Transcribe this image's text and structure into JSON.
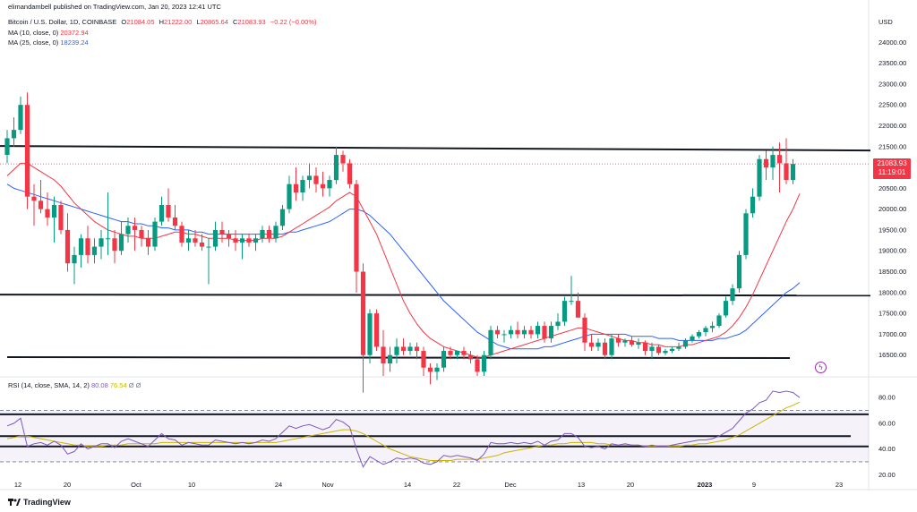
{
  "header": {
    "publisher": "elimandambell published on TradingView.com, Jan 20, 2023 12:41 UTC",
    "symbol": "Bitcoin / U.S. Dollar, 1D, COINBASE",
    "o_label": "O",
    "o_value": "21084.05",
    "h_label": "H",
    "h_value": "21222.00",
    "l_label": "L",
    "l_value": "20865.64",
    "c_label": "C",
    "c_value": "21083.93",
    "change": "−0.22 (−0.00%)",
    "ma10_label": "MA (10, close, 0)",
    "ma10_value": "20372.94",
    "ma25_label": "MA (25, close, 0)",
    "ma25_value": "18239.24",
    "rsi_label": "RSI (14, close, SMA, 14, 2)",
    "rsi_value": "80.08",
    "rsi_ma_value": "76.54",
    "rsi_extra1": "Ø",
    "rsi_extra2": "Ø"
  },
  "price_tag": {
    "price": "21083.93",
    "countdown": "11:19:01"
  },
  "brand": "TradingView",
  "colors": {
    "up": "#089981",
    "down": "#f23645",
    "ma10": "#f23645",
    "ma25": "#2962ff",
    "rsi": "#7e57c2",
    "rsi_ma": "#c9b500",
    "level_line": "#131722"
  },
  "chart_data": {
    "type": "candlestick",
    "currency_label": "USD",
    "price_axis": {
      "min": 16000,
      "max": 24500,
      "ticks": [
        "24000.00",
        "23500.00",
        "23000.00",
        "22500.00",
        "22000.00",
        "21500.00",
        "21000.00",
        "20500.00",
        "20000.00",
        "19500.00",
        "19000.00",
        "18500.00",
        "18000.00",
        "17500.00",
        "17000.00",
        "16500.00"
      ]
    },
    "rsi_axis": {
      "ticks": [
        "80.00",
        "60.00",
        "40.00",
        "20.00"
      ],
      "band": [
        30,
        70
      ]
    },
    "time_ticks": [
      "12",
      "20",
      "Oct",
      "10",
      "24",
      "Nov",
      "14",
      "22",
      "Dec",
      "13",
      "20",
      "2023",
      "9",
      "23"
    ],
    "candles": [
      {
        "o": 21300,
        "h": 21900,
        "l": 21100,
        "c": 21700
      },
      {
        "o": 21700,
        "h": 22200,
        "l": 21500,
        "c": 21900
      },
      {
        "o": 21900,
        "h": 22700,
        "l": 21800,
        "c": 22500
      },
      {
        "o": 22500,
        "h": 22800,
        "l": 20000,
        "c": 20300
      },
      {
        "o": 20300,
        "h": 20600,
        "l": 19600,
        "c": 20200
      },
      {
        "o": 20200,
        "h": 20700,
        "l": 19900,
        "c": 20000
      },
      {
        "o": 20000,
        "h": 20400,
        "l": 19600,
        "c": 19800
      },
      {
        "o": 19800,
        "h": 20300,
        "l": 19200,
        "c": 20100
      },
      {
        "o": 20100,
        "h": 20200,
        "l": 19400,
        "c": 19500
      },
      {
        "o": 19500,
        "h": 19900,
        "l": 18500,
        "c": 18700
      },
      {
        "o": 18700,
        "h": 19100,
        "l": 18200,
        "c": 18900
      },
      {
        "o": 18900,
        "h": 19400,
        "l": 18600,
        "c": 19300
      },
      {
        "o": 19300,
        "h": 19600,
        "l": 18700,
        "c": 18900
      },
      {
        "o": 18900,
        "h": 19300,
        "l": 18700,
        "c": 19100
      },
      {
        "o": 19100,
        "h": 19500,
        "l": 18800,
        "c": 19300
      },
      {
        "o": 19300,
        "h": 20400,
        "l": 18900,
        "c": 19300
      },
      {
        "o": 19300,
        "h": 19500,
        "l": 18700,
        "c": 19000
      },
      {
        "o": 19000,
        "h": 19700,
        "l": 18900,
        "c": 19400
      },
      {
        "o": 19400,
        "h": 19800,
        "l": 19200,
        "c": 19600
      },
      {
        "o": 19600,
        "h": 19800,
        "l": 19000,
        "c": 19500
      },
      {
        "o": 19500,
        "h": 19600,
        "l": 19100,
        "c": 19300
      },
      {
        "o": 19300,
        "h": 19500,
        "l": 18900,
        "c": 19100
      },
      {
        "o": 19100,
        "h": 19800,
        "l": 19000,
        "c": 19700
      },
      {
        "o": 19700,
        "h": 20300,
        "l": 19600,
        "c": 20100
      },
      {
        "o": 20100,
        "h": 20500,
        "l": 19700,
        "c": 19800
      },
      {
        "o": 19800,
        "h": 20100,
        "l": 19500,
        "c": 19600
      },
      {
        "o": 19600,
        "h": 19700,
        "l": 19100,
        "c": 19200
      },
      {
        "o": 19200,
        "h": 19500,
        "l": 19000,
        "c": 19300
      },
      {
        "o": 19300,
        "h": 19500,
        "l": 19100,
        "c": 19200
      },
      {
        "o": 19200,
        "h": 19400,
        "l": 19000,
        "c": 19100
      },
      {
        "o": 19100,
        "h": 19300,
        "l": 18200,
        "c": 19100
      },
      {
        "o": 19100,
        "h": 19700,
        "l": 19000,
        "c": 19500
      },
      {
        "o": 19500,
        "h": 19700,
        "l": 19200,
        "c": 19400
      },
      {
        "o": 19400,
        "h": 19500,
        "l": 19100,
        "c": 19300
      },
      {
        "o": 19300,
        "h": 19500,
        "l": 19000,
        "c": 19200
      },
      {
        "o": 19200,
        "h": 19400,
        "l": 18800,
        "c": 19300
      },
      {
        "o": 19300,
        "h": 19400,
        "l": 19100,
        "c": 19200
      },
      {
        "o": 19200,
        "h": 19400,
        "l": 19000,
        "c": 19300
      },
      {
        "o": 19300,
        "h": 19600,
        "l": 19200,
        "c": 19500
      },
      {
        "o": 19500,
        "h": 19600,
        "l": 19200,
        "c": 19300
      },
      {
        "o": 19300,
        "h": 19700,
        "l": 19200,
        "c": 19600
      },
      {
        "o": 19600,
        "h": 20100,
        "l": 19500,
        "c": 20000
      },
      {
        "o": 20000,
        "h": 20800,
        "l": 19900,
        "c": 20600
      },
      {
        "o": 20600,
        "h": 21000,
        "l": 20200,
        "c": 20400
      },
      {
        "o": 20400,
        "h": 20800,
        "l": 20200,
        "c": 20700
      },
      {
        "o": 20700,
        "h": 21100,
        "l": 20500,
        "c": 20800
      },
      {
        "o": 20800,
        "h": 21000,
        "l": 20400,
        "c": 20600
      },
      {
        "o": 20600,
        "h": 20900,
        "l": 20300,
        "c": 20500
      },
      {
        "o": 20500,
        "h": 20800,
        "l": 20300,
        "c": 20700
      },
      {
        "o": 20700,
        "h": 21500,
        "l": 20600,
        "c": 21300
      },
      {
        "o": 21300,
        "h": 21400,
        "l": 20900,
        "c": 21100
      },
      {
        "o": 21100,
        "h": 21200,
        "l": 20500,
        "c": 20600
      },
      {
        "o": 20600,
        "h": 20700,
        "l": 18000,
        "c": 18500
      },
      {
        "o": 18500,
        "h": 18700,
        "l": 15600,
        "c": 16500
      },
      {
        "o": 16500,
        "h": 17600,
        "l": 16300,
        "c": 17500
      },
      {
        "o": 17500,
        "h": 17600,
        "l": 16600,
        "c": 16700
      },
      {
        "o": 16700,
        "h": 17100,
        "l": 16000,
        "c": 16300
      },
      {
        "o": 16300,
        "h": 16700,
        "l": 16100,
        "c": 16500
      },
      {
        "o": 16500,
        "h": 16900,
        "l": 16300,
        "c": 16700
      },
      {
        "o": 16700,
        "h": 16900,
        "l": 16500,
        "c": 16600
      },
      {
        "o": 16600,
        "h": 16800,
        "l": 16500,
        "c": 16700
      },
      {
        "o": 16700,
        "h": 16800,
        "l": 16400,
        "c": 16600
      },
      {
        "o": 16600,
        "h": 16700,
        "l": 16000,
        "c": 16200
      },
      {
        "o": 16200,
        "h": 16300,
        "l": 15800,
        "c": 16100
      },
      {
        "o": 16100,
        "h": 16300,
        "l": 15900,
        "c": 16200
      },
      {
        "o": 16200,
        "h": 16700,
        "l": 16100,
        "c": 16600
      },
      {
        "o": 16600,
        "h": 16700,
        "l": 16400,
        "c": 16500
      },
      {
        "o": 16500,
        "h": 16600,
        "l": 16400,
        "c": 16600
      },
      {
        "o": 16600,
        "h": 16700,
        "l": 16400,
        "c": 16500
      },
      {
        "o": 16500,
        "h": 16600,
        "l": 16300,
        "c": 16400
      },
      {
        "o": 16400,
        "h": 16500,
        "l": 16000,
        "c": 16100
      },
      {
        "o": 16100,
        "h": 16600,
        "l": 16000,
        "c": 16500
      },
      {
        "o": 16500,
        "h": 17200,
        "l": 16400,
        "c": 17100
      },
      {
        "o": 17100,
        "h": 17200,
        "l": 16900,
        "c": 17000
      },
      {
        "o": 17000,
        "h": 17100,
        "l": 16800,
        "c": 17000
      },
      {
        "o": 17000,
        "h": 17200,
        "l": 16900,
        "c": 17100
      },
      {
        "o": 17100,
        "h": 17300,
        "l": 16900,
        "c": 17000
      },
      {
        "o": 17000,
        "h": 17200,
        "l": 16900,
        "c": 17100
      },
      {
        "o": 17100,
        "h": 17200,
        "l": 16900,
        "c": 17000
      },
      {
        "o": 17000,
        "h": 17300,
        "l": 16900,
        "c": 17200
      },
      {
        "o": 17200,
        "h": 17300,
        "l": 16800,
        "c": 16900
      },
      {
        "o": 16900,
        "h": 17300,
        "l": 16800,
        "c": 17200
      },
      {
        "o": 17200,
        "h": 17500,
        "l": 17100,
        "c": 17300
      },
      {
        "o": 17300,
        "h": 17900,
        "l": 17200,
        "c": 17800
      },
      {
        "o": 17800,
        "h": 18400,
        "l": 17700,
        "c": 17800
      },
      {
        "o": 17800,
        "h": 18000,
        "l": 17400,
        "c": 17400
      },
      {
        "o": 17400,
        "h": 17500,
        "l": 16600,
        "c": 16800
      },
      {
        "o": 16800,
        "h": 17000,
        "l": 16600,
        "c": 16700
      },
      {
        "o": 16700,
        "h": 16900,
        "l": 16600,
        "c": 16800
      },
      {
        "o": 16800,
        "h": 16900,
        "l": 16400,
        "c": 16500
      },
      {
        "o": 16500,
        "h": 17000,
        "l": 16400,
        "c": 16900
      },
      {
        "o": 16900,
        "h": 17000,
        "l": 16700,
        "c": 16800
      },
      {
        "o": 16800,
        "h": 16900,
        "l": 16700,
        "c": 16850
      },
      {
        "o": 16850,
        "h": 16950,
        "l": 16700,
        "c": 16750
      },
      {
        "o": 16750,
        "h": 16900,
        "l": 16650,
        "c": 16800
      },
      {
        "o": 16800,
        "h": 16850,
        "l": 16500,
        "c": 16600
      },
      {
        "o": 16600,
        "h": 16800,
        "l": 16400,
        "c": 16700
      },
      {
        "o": 16700,
        "h": 16750,
        "l": 16500,
        "c": 16550
      },
      {
        "o": 16550,
        "h": 16650,
        "l": 16500,
        "c": 16600
      },
      {
        "o": 16600,
        "h": 16700,
        "l": 16550,
        "c": 16650
      },
      {
        "o": 16650,
        "h": 16800,
        "l": 16600,
        "c": 16700
      },
      {
        "o": 16700,
        "h": 16900,
        "l": 16650,
        "c": 16850
      },
      {
        "o": 16850,
        "h": 17000,
        "l": 16800,
        "c": 16950
      },
      {
        "o": 16950,
        "h": 17100,
        "l": 16900,
        "c": 17050
      },
      {
        "o": 17050,
        "h": 17200,
        "l": 16950,
        "c": 17150
      },
      {
        "o": 17150,
        "h": 17300,
        "l": 17050,
        "c": 17200
      },
      {
        "o": 17200,
        "h": 17500,
        "l": 17150,
        "c": 17450
      },
      {
        "o": 17450,
        "h": 17900,
        "l": 17400,
        "c": 17800
      },
      {
        "o": 17800,
        "h": 18200,
        "l": 17700,
        "c": 18100
      },
      {
        "o": 18100,
        "h": 19000,
        "l": 18000,
        "c": 18900
      },
      {
        "o": 18900,
        "h": 20000,
        "l": 18800,
        "c": 19900
      },
      {
        "o": 19900,
        "h": 20500,
        "l": 19800,
        "c": 20300
      },
      {
        "o": 20300,
        "h": 21300,
        "l": 20200,
        "c": 21200
      },
      {
        "o": 21200,
        "h": 21400,
        "l": 20700,
        "c": 21000
      },
      {
        "o": 21000,
        "h": 21500,
        "l": 20700,
        "c": 21300
      },
      {
        "o": 21300,
        "h": 21600,
        "l": 20400,
        "c": 21100
      },
      {
        "o": 21100,
        "h": 21700,
        "l": 20600,
        "c": 20700
      },
      {
        "o": 20700,
        "h": 21200,
        "l": 20600,
        "c": 21084
      }
    ],
    "ma10": [
      20800,
      20950,
      21100,
      21100,
      21000,
      20900,
      20800,
      20700,
      20550,
      20350,
      20150,
      20000,
      19850,
      19700,
      19600,
      19500,
      19450,
      19400,
      19350,
      19350,
      19300,
      19300,
      19300,
      19350,
      19400,
      19450,
      19450,
      19400,
      19400,
      19350,
      19300,
      19300,
      19300,
      19300,
      19250,
      19250,
      19250,
      19250,
      19300,
      19300,
      19300,
      19350,
      19450,
      19550,
      19650,
      19750,
      19850,
      19950,
      20050,
      20200,
      20300,
      20400,
      20300,
      20000,
      19700,
      19400,
      19000,
      18600,
      18200,
      17800,
      17500,
      17250,
      17050,
      16900,
      16800,
      16700,
      16650,
      16600,
      16550,
      16500,
      16450,
      16450,
      16500,
      16550,
      16600,
      16650,
      16700,
      16750,
      16800,
      16850,
      16900,
      16950,
      17000,
      17050,
      17100,
      17150,
      17150,
      17100,
      17050,
      17000,
      16950,
      16900,
      16850,
      16850,
      16800,
      16800,
      16750,
      16750,
      16700,
      16700,
      16700,
      16750,
      16750,
      16800,
      16850,
      16900,
      16950,
      17050,
      17200,
      17400,
      17650,
      17950,
      18300,
      18650,
      19000,
      19350,
      19700,
      20000,
      20372
    ],
    "ma25": [
      20600,
      20500,
      20450,
      20400,
      20350,
      20300,
      20250,
      20200,
      20150,
      20100,
      20050,
      20000,
      19950,
      19900,
      19850,
      19800,
      19750,
      19700,
      19700,
      19650,
      19650,
      19600,
      19600,
      19550,
      19550,
      19500,
      19500,
      19500,
      19450,
      19450,
      19400,
      19400,
      19400,
      19400,
      19400,
      19400,
      19400,
      19400,
      19400,
      19400,
      19400,
      19400,
      19450,
      19450,
      19500,
      19550,
      19600,
      19650,
      19700,
      19800,
      19900,
      20000,
      20000,
      19950,
      19850,
      19700,
      19550,
      19400,
      19200,
      19000,
      18800,
      18600,
      18400,
      18200,
      18000,
      17800,
      17650,
      17500,
      17350,
      17200,
      17050,
      16950,
      16850,
      16750,
      16700,
      16650,
      16650,
      16650,
      16650,
      16650,
      16700,
      16700,
      16750,
      16800,
      16850,
      16900,
      16950,
      17000,
      17000,
      17000,
      17000,
      17000,
      17000,
      16950,
      16950,
      16950,
      16950,
      16900,
      16900,
      16900,
      16850,
      16850,
      16850,
      16850,
      16850,
      16850,
      16900,
      16900,
      16950,
      17000,
      17100,
      17250,
      17400,
      17550,
      17700,
      17850,
      18000,
      18100,
      18239
    ],
    "rsi": [
      58,
      60,
      64,
      42,
      44,
      45,
      43,
      46,
      43,
      36,
      38,
      44,
      40,
      42,
      44,
      44,
      41,
      46,
      48,
      46,
      44,
      42,
      47,
      52,
      48,
      47,
      43,
      45,
      44,
      43,
      43,
      47,
      46,
      45,
      44,
      45,
      44,
      45,
      47,
      46,
      48,
      53,
      58,
      56,
      58,
      59,
      57,
      55,
      57,
      63,
      61,
      57,
      40,
      26,
      34,
      31,
      28,
      30,
      33,
      32,
      33,
      32,
      29,
      28,
      30,
      35,
      34,
      35,
      34,
      33,
      31,
      36,
      45,
      44,
      44,
      45,
      44,
      45,
      44,
      46,
      43,
      46,
      47,
      52,
      52,
      49,
      42,
      41,
      42,
      40,
      44,
      43,
      44,
      43,
      43,
      42,
      43,
      42,
      42,
      43,
      44,
      45,
      46,
      47,
      47,
      48,
      50,
      53,
      56,
      62,
      68,
      71,
      76,
      78,
      85,
      84,
      85,
      84,
      80
    ],
    "rsi_ma": [
      48,
      49,
      50,
      50,
      49,
      48,
      47,
      46,
      45,
      44,
      43,
      43,
      42,
      42,
      42,
      43,
      43,
      43,
      44,
      44,
      44,
      44,
      44,
      45,
      45,
      45,
      45,
      45,
      45,
      45,
      45,
      45,
      45,
      45,
      45,
      45,
      45,
      45,
      45,
      45,
      45,
      46,
      47,
      48,
      49,
      50,
      51,
      52,
      53,
      54,
      55,
      55,
      54,
      52,
      49,
      46,
      43,
      40,
      38,
      36,
      34,
      33,
      32,
      31,
      31,
      31,
      31,
      32,
      32,
      32,
      32,
      33,
      34,
      35,
      37,
      38,
      39,
      40,
      41,
      42,
      43,
      43,
      44,
      44,
      45,
      45,
      45,
      45,
      44,
      44,
      43,
      43,
      43,
      43,
      43,
      42,
      42,
      42,
      42,
      42,
      42,
      43,
      43,
      44,
      44,
      45,
      46,
      47,
      49,
      51,
      54,
      57,
      60,
      63,
      66,
      69,
      72,
      74,
      76.54
    ],
    "level_lines": [
      21450,
      17950,
      16450
    ],
    "rsi_level_lines": [
      67,
      50,
      42
    ]
  }
}
